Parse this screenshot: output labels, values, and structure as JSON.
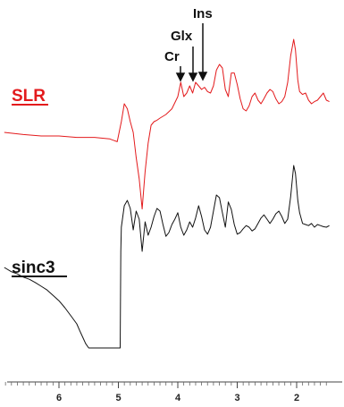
{
  "chart_data": [
    {
      "type": "line",
      "title": "",
      "xlabel": "",
      "ylabel": "",
      "x_reversed": true,
      "xlim": [
        6.95,
        1.42
      ],
      "x_ticks": [
        6,
        5,
        4,
        3,
        2
      ],
      "x_tick_labels": [
        "6",
        "5",
        "4",
        "3",
        "2"
      ],
      "grid": false,
      "legend": "none",
      "series": [
        {
          "name": "SLR",
          "color": "#e31a1c",
          "y_units": "relative intensity",
          "x": [
            6.92,
            6.6,
            6.3,
            6.0,
            5.7,
            5.4,
            5.15,
            5.02,
            4.95,
            4.9,
            4.85,
            4.8,
            4.75,
            4.7,
            4.65,
            4.6,
            4.55,
            4.5,
            4.45,
            4.4,
            4.35,
            4.3,
            4.2,
            4.1,
            4.0,
            3.95,
            3.9,
            3.85,
            3.8,
            3.75,
            3.7,
            3.65,
            3.6,
            3.55,
            3.5,
            3.45,
            3.4,
            3.35,
            3.3,
            3.25,
            3.2,
            3.15,
            3.1,
            3.05,
            3.0,
            2.95,
            2.9,
            2.85,
            2.8,
            2.75,
            2.7,
            2.65,
            2.6,
            2.55,
            2.5,
            2.45,
            2.4,
            2.35,
            2.3,
            2.25,
            2.2,
            2.15,
            2.1,
            2.05,
            2.02,
            1.98,
            1.95,
            1.9,
            1.85,
            1.8,
            1.75,
            1.7,
            1.65,
            1.6,
            1.55,
            1.5,
            1.45
          ],
          "y": [
            0.05,
            0.02,
            0.0,
            0.0,
            -0.02,
            -0.02,
            -0.04,
            -0.08,
            0.2,
            0.45,
            0.38,
            0.2,
            0.05,
            -0.3,
            -0.6,
            -1.02,
            -0.5,
            -0.1,
            0.15,
            0.2,
            0.22,
            0.25,
            0.3,
            0.38,
            0.55,
            0.75,
            0.55,
            0.6,
            0.7,
            0.6,
            0.75,
            0.7,
            0.65,
            0.68,
            0.62,
            0.6,
            0.7,
            0.92,
            1.0,
            0.95,
            0.65,
            0.55,
            0.88,
            0.88,
            0.72,
            0.52,
            0.38,
            0.35,
            0.42,
            0.55,
            0.6,
            0.5,
            0.45,
            0.52,
            0.6,
            0.65,
            0.62,
            0.52,
            0.45,
            0.48,
            0.55,
            0.75,
            1.12,
            1.35,
            1.2,
            0.78,
            0.62,
            0.58,
            0.6,
            0.5,
            0.45,
            0.48,
            0.5,
            0.55,
            0.6,
            0.5,
            0.48
          ]
        },
        {
          "name": "sinc3",
          "color": "#111111",
          "y_units": "relative intensity",
          "x": [
            6.92,
            6.8,
            6.7,
            6.6,
            6.5,
            6.4,
            6.3,
            6.2,
            6.1,
            6.0,
            5.9,
            5.8,
            5.7,
            5.65,
            5.6,
            5.55,
            5.5,
            4.97,
            4.96,
            4.95,
            4.9,
            4.85,
            4.8,
            4.75,
            4.7,
            4.65,
            4.6,
            4.55,
            4.5,
            4.45,
            4.4,
            4.35,
            4.3,
            4.25,
            4.2,
            4.15,
            4.1,
            4.05,
            4.0,
            3.95,
            3.9,
            3.85,
            3.8,
            3.75,
            3.7,
            3.65,
            3.6,
            3.55,
            3.5,
            3.45,
            3.4,
            3.35,
            3.3,
            3.25,
            3.2,
            3.15,
            3.1,
            3.05,
            3.0,
            2.95,
            2.9,
            2.85,
            2.8,
            2.75,
            2.7,
            2.65,
            2.6,
            2.55,
            2.5,
            2.45,
            2.4,
            2.35,
            2.3,
            2.25,
            2.2,
            2.15,
            2.1,
            2.05,
            2.02,
            1.98,
            1.95,
            1.9,
            1.85,
            1.8,
            1.75,
            1.7,
            1.65,
            1.6,
            1.55,
            1.5,
            1.45
          ],
          "y": [
            -0.2,
            -0.28,
            -0.32,
            -0.38,
            -0.42,
            -0.48,
            -0.55,
            -0.62,
            -0.72,
            -0.82,
            -0.95,
            -1.1,
            -1.25,
            -1.38,
            -1.5,
            -1.62,
            -1.7,
            -1.7,
            0.1,
            0.55,
            0.95,
            1.05,
            0.9,
            0.5,
            0.85,
            0.7,
            0.1,
            0.65,
            0.4,
            0.55,
            0.75,
            0.9,
            0.85,
            0.6,
            0.38,
            0.45,
            0.6,
            0.7,
            0.82,
            0.55,
            0.4,
            0.5,
            0.65,
            0.55,
            0.72,
            0.95,
            0.75,
            0.5,
            0.42,
            0.55,
            0.85,
            1.15,
            1.1,
            0.82,
            0.55,
            1.02,
            0.88,
            0.6,
            0.42,
            0.45,
            0.52,
            0.58,
            0.55,
            0.48,
            0.52,
            0.62,
            0.72,
            0.78,
            0.7,
            0.62,
            0.7,
            0.8,
            0.85,
            0.75,
            0.62,
            0.7,
            1.12,
            1.7,
            1.55,
            1.05,
            0.82,
            0.62,
            0.6,
            0.58,
            0.62,
            0.55,
            0.6,
            0.58,
            0.56,
            0.55,
            0.58
          ]
        }
      ],
      "annotations": [
        {
          "text": "SLR",
          "color": "#e31a1c",
          "underline": true
        },
        {
          "text": "sinc3",
          "color": "#111111",
          "underline": true
        },
        {
          "text": "Ins",
          "x": 3.7,
          "arrow": true
        },
        {
          "text": "Glx",
          "x": 3.78,
          "arrow": true
        },
        {
          "text": "Cr",
          "x": 3.95,
          "arrow": true
        }
      ]
    }
  ]
}
